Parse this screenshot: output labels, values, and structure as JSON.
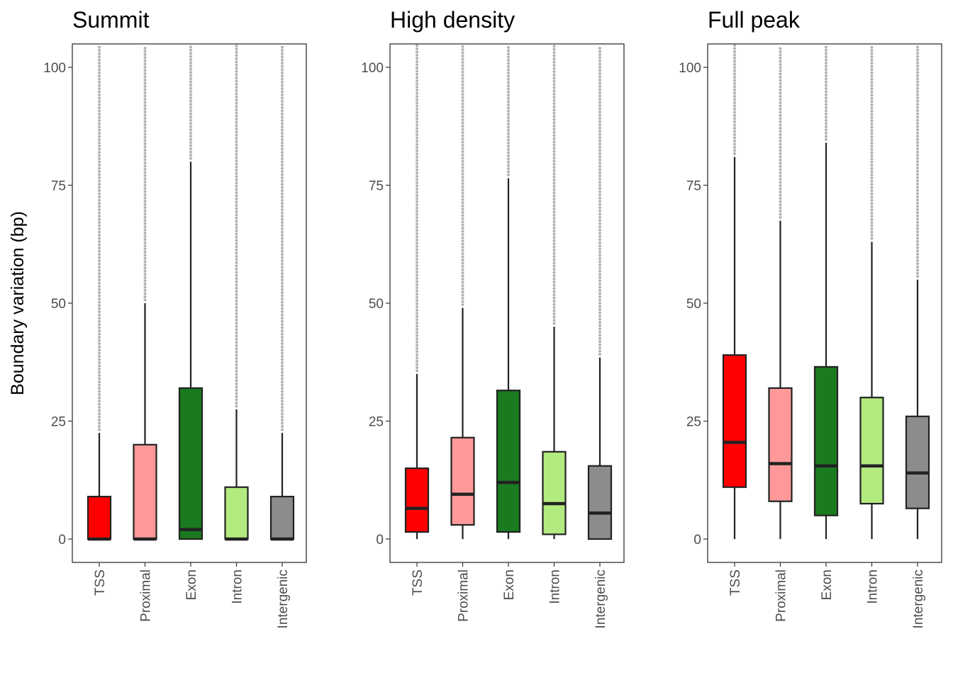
{
  "chart_data": {
    "type": "boxplot",
    "ylabel": "Boundary variation (bp)",
    "ylim": [
      -5,
      105
    ],
    "yticks": [
      0,
      25,
      50,
      75,
      100
    ],
    "categories": [
      "TSS",
      "Proximal",
      "Exon",
      "Intron",
      "Intergenic"
    ],
    "colors": {
      "TSS": "#ff0000",
      "Proximal": "#ff9999",
      "Exon": "#1a7a1f",
      "Intron": "#b3ea80",
      "Intergenic": "#8c8c8c",
      "outlier": "#b3b3b3"
    },
    "grid": false,
    "legend": "none",
    "panels": [
      {
        "title": "Summit",
        "boxes": [
          {
            "category": "TSS",
            "whisker_low": 0,
            "q1": 0,
            "median": 0,
            "q3": 9,
            "whisker_high": 22.5,
            "outliers_from": 22.5
          },
          {
            "category": "Proximal",
            "whisker_low": 0,
            "q1": 0,
            "median": 0,
            "q3": 20,
            "whisker_high": 50,
            "outliers_from": 50
          },
          {
            "category": "Exon",
            "whisker_low": 0,
            "q1": 0,
            "median": 2,
            "q3": 32,
            "whisker_high": 80,
            "outliers_from": 80
          },
          {
            "category": "Intron",
            "whisker_low": 0,
            "q1": 0,
            "median": 0,
            "q3": 11,
            "whisker_high": 27.5,
            "outliers_from": 27.5
          },
          {
            "category": "Intergenic",
            "whisker_low": 0,
            "q1": 0,
            "median": 0,
            "q3": 9,
            "whisker_high": 22.5,
            "outliers_from": 22.5
          }
        ]
      },
      {
        "title": "High density",
        "boxes": [
          {
            "category": "TSS",
            "whisker_low": 0,
            "q1": 1.5,
            "median": 6.5,
            "q3": 15,
            "whisker_high": 35,
            "outliers_from": 35
          },
          {
            "category": "Proximal",
            "whisker_low": 0,
            "q1": 3,
            "median": 9.5,
            "q3": 21.5,
            "whisker_high": 49,
            "outliers_from": 49
          },
          {
            "category": "Exon",
            "whisker_low": 0,
            "q1": 1.5,
            "median": 12,
            "q3": 31.5,
            "whisker_high": 76.5,
            "outliers_from": 76.5
          },
          {
            "category": "Intron",
            "whisker_low": 0,
            "q1": 1,
            "median": 7.5,
            "q3": 18.5,
            "whisker_high": 45,
            "outliers_from": 45
          },
          {
            "category": "Intergenic",
            "whisker_low": 0,
            "q1": 0,
            "median": 5.5,
            "q3": 15.5,
            "whisker_high": 38.5,
            "outliers_from": 38.5
          }
        ]
      },
      {
        "title": "Full peak",
        "boxes": [
          {
            "category": "TSS",
            "whisker_low": 0,
            "q1": 11,
            "median": 20.5,
            "q3": 39,
            "whisker_high": 81,
            "outliers_from": 81
          },
          {
            "category": "Proximal",
            "whisker_low": 0,
            "q1": 8,
            "median": 16,
            "q3": 32,
            "whisker_high": 67.5,
            "outliers_from": 67.5
          },
          {
            "category": "Exon",
            "whisker_low": 0,
            "q1": 5,
            "median": 15.5,
            "q3": 36.5,
            "whisker_high": 84,
            "outliers_from": 84
          },
          {
            "category": "Intron",
            "whisker_low": 0,
            "q1": 7.5,
            "median": 15.5,
            "q3": 30,
            "whisker_high": 63,
            "outliers_from": 63
          },
          {
            "category": "Intergenic",
            "whisker_low": 0,
            "q1": 6.5,
            "median": 14,
            "q3": 26,
            "whisker_high": 55,
            "outliers_from": 55
          }
        ]
      }
    ]
  }
}
